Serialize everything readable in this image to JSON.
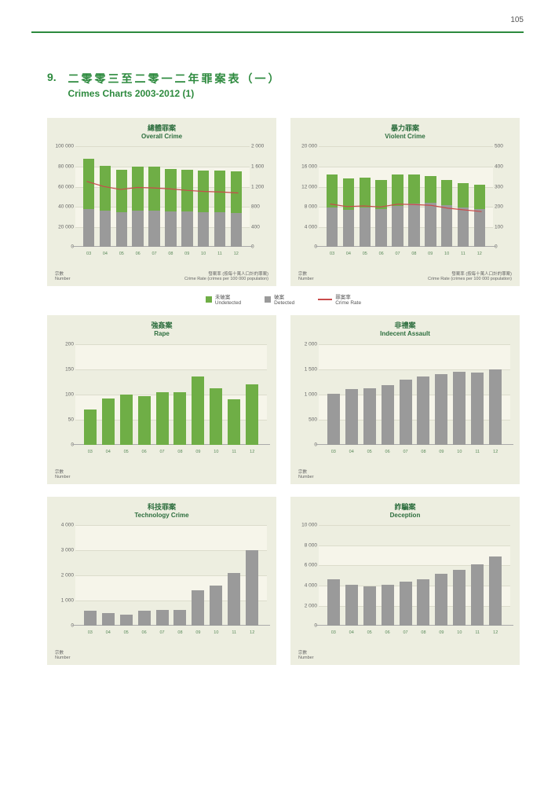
{
  "page_number": "105",
  "header": {
    "number": "9.",
    "title_zh": "二零零三至二零一二年罪案表（一）",
    "title_en": "Crimes Charts 2003-2012 (1)"
  },
  "colors": {
    "brand_green": "#2d8a3e",
    "panel_bg": "#edeee0",
    "band_bg": "#f6f5ea",
    "bar_green": "#6fae46",
    "bar_grey": "#9a9a9a",
    "line_red": "#c94b4b",
    "axis_text": "#666666",
    "x_label": "#5a8a5a"
  },
  "years": [
    "03",
    "04",
    "05",
    "06",
    "07",
    "08",
    "09",
    "10",
    "11",
    "12"
  ],
  "legend": {
    "undetected_zh": "未破案",
    "undetected_en": "Undetected",
    "detected_zh": "破案",
    "detected_en": "Detected",
    "rate_zh": "罪案率",
    "rate_en": "Crime Rate"
  },
  "axis_captions": {
    "number_zh": "宗數",
    "number_en": "Number",
    "rate_zh": "發案率 (按每十萬人口計的罪案)",
    "rate_en": "Crime Rate (crimes per 100 000 population)"
  },
  "charts": [
    {
      "id": "overall",
      "title_zh": "總體罪案",
      "title_en": "Overall Crime",
      "type": "stacked-bar-line",
      "y_max": 100000,
      "y_step": 20000,
      "y2_max": 2000,
      "y2_step": 400,
      "y_labels": [
        "0",
        "20 000",
        "40 000",
        "60 000",
        "80 000",
        "100 000"
      ],
      "y2_labels": [
        "0",
        "400",
        "800",
        "1 200",
        "1 600",
        "2 000"
      ],
      "bars": [
        {
          "detected": 38000,
          "undetected": 50000
        },
        {
          "detected": 36500,
          "undetected": 44500
        },
        {
          "detected": 35000,
          "undetected": 42000
        },
        {
          "detected": 36000,
          "undetected": 44000
        },
        {
          "detected": 36000,
          "undetected": 44000
        },
        {
          "detected": 35500,
          "undetected": 42500
        },
        {
          "detected": 35500,
          "undetected": 41500
        },
        {
          "detected": 35000,
          "undetected": 41000
        },
        {
          "detected": 35000,
          "undetected": 41000
        },
        {
          "detected": 34000,
          "undetected": 41000
        }
      ],
      "line": [
        1300,
        1200,
        1140,
        1180,
        1170,
        1150,
        1120,
        1100,
        1090,
        1070
      ]
    },
    {
      "id": "violent",
      "title_zh": "暴力罪案",
      "title_en": "Violent Crime",
      "type": "stacked-bar-line",
      "y_max": 20000,
      "y_step": 4000,
      "y2_max": 500,
      "y2_step": 100,
      "y_labels": [
        "0",
        "4 000",
        "8 000",
        "12 000",
        "16 000",
        "20 000"
      ],
      "y2_labels": [
        "0",
        "100",
        "200",
        "300",
        "400",
        "500"
      ],
      "bars": [
        {
          "detected": 7800,
          "undetected": 6600
        },
        {
          "detected": 7400,
          "undetected": 6200
        },
        {
          "detected": 7800,
          "undetected": 6000
        },
        {
          "detected": 7600,
          "undetected": 5800
        },
        {
          "detected": 8200,
          "undetected": 6300
        },
        {
          "detected": 8600,
          "undetected": 5800
        },
        {
          "detected": 8800,
          "undetected": 5400
        },
        {
          "detected": 8400,
          "undetected": 5000
        },
        {
          "detected": 7800,
          "undetected": 5000
        },
        {
          "detected": 7600,
          "undetected": 4800
        }
      ],
      "line": [
        213,
        200,
        203,
        198,
        212,
        210,
        206,
        192,
        183,
        175
      ]
    },
    {
      "id": "rape",
      "title_zh": "強姦案",
      "title_en": "Rape",
      "type": "bar",
      "bar_color_key": "bar_green",
      "y_max": 200,
      "y_step": 50,
      "y_labels": [
        "0",
        "50",
        "100",
        "150",
        "200"
      ],
      "bars": [
        70,
        92,
        100,
        96,
        104,
        105,
        136,
        112,
        90,
        120
      ]
    },
    {
      "id": "indecent",
      "title_zh": "非禮案",
      "title_en": "Indecent Assault",
      "type": "bar",
      "bar_color_key": "bar_grey",
      "y_max": 2000,
      "y_step": 500,
      "y_labels": [
        "0",
        "500",
        "1 000",
        "1 500",
        "2 000"
      ],
      "bars": [
        1010,
        1100,
        1120,
        1180,
        1300,
        1350,
        1400,
        1450,
        1430,
        1490
      ]
    },
    {
      "id": "tech",
      "title_zh": "科技罪案",
      "title_en": "Technology Crime",
      "type": "bar",
      "bar_color_key": "bar_grey",
      "y_max": 4000,
      "y_step": 1000,
      "y_labels": [
        "0",
        "1 000",
        "2 000",
        "3 000",
        "4 000"
      ],
      "bars": [
        588,
        520,
        450,
        600,
        620,
        620,
        1400,
        1600,
        2100,
        3000
      ]
    },
    {
      "id": "deception",
      "title_zh": "詐騙案",
      "title_en": "Deception",
      "type": "bar",
      "bar_color_key": "bar_grey",
      "y_max": 10000,
      "y_step": 2000,
      "y_labels": [
        "0",
        "2 000",
        "4 000",
        "6 000",
        "8 000",
        "10 000"
      ],
      "bars": [
        4600,
        4100,
        3900,
        4100,
        4400,
        4600,
        5200,
        5600,
        6100,
        6900
      ]
    }
  ]
}
